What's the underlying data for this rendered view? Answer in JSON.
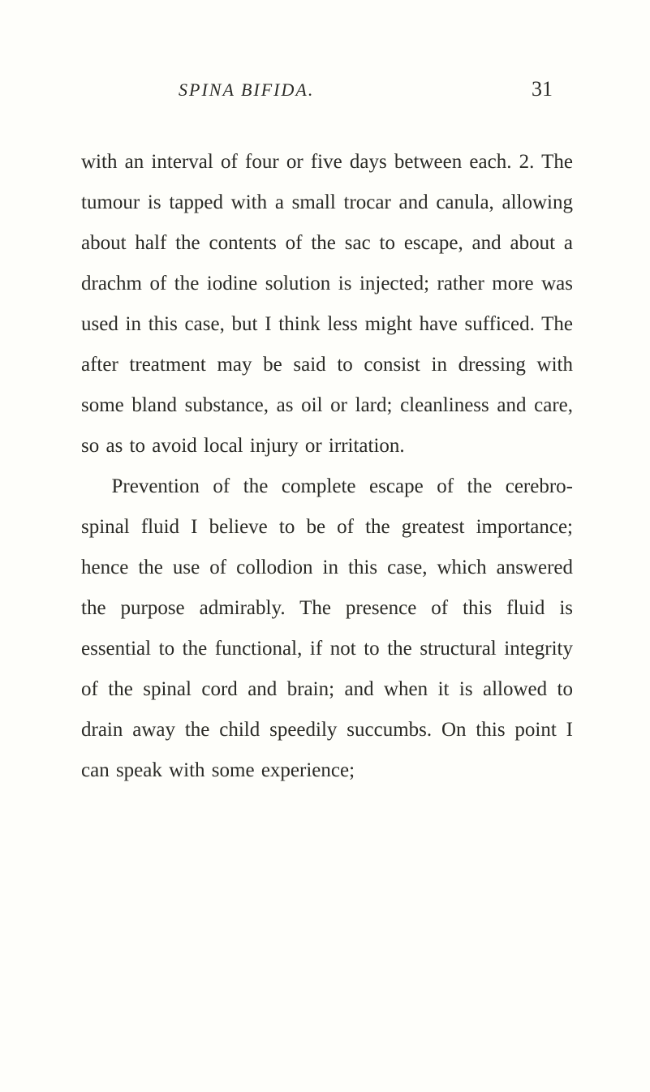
{
  "header": {
    "running_title": "SPINA BIFIDA.",
    "page_number": "31"
  },
  "paragraphs": {
    "p1": "with an interval of four or five days between each. 2. The tumour is tapped with a small trocar and canula, allowing about half the contents of the sac to escape, and about a drachm of the iodine solution is injected; rather more was used in this case, but I think less might have sufficed. The after treatment may be said to consist in dressing with some bland substance, as oil or lard; cleanliness and care, so as to avoid local injury or irritation.",
    "p2": "Prevention of the complete escape of the cerebro-spinal fluid I believe to be of the greatest importance; hence the use of collodion in this case, which answered the purpose admirably. The presence of this fluid is essential to the functional, if not to the structural integrity of the spinal cord and brain; and when it is allowed to drain away the child speedily succumbs. On this point I can speak with some experience;"
  },
  "styling": {
    "page_bg": "#fefefa",
    "text_color": "#2a2a26",
    "body_fontsize": 25,
    "line_height": 2.0,
    "header_title_fontsize": 22,
    "page_number_fontsize": 26
  }
}
